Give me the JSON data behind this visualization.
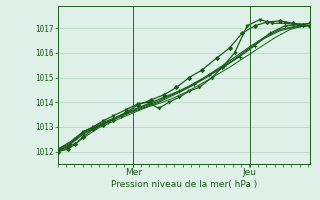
{
  "title": "",
  "xlabel": "Pression niveau de la mer( hPa )",
  "ylabel": "",
  "bg_color": "#dff0e8",
  "grid_color": "#b0d4bc",
  "line_color": "#1a5c1a",
  "tick_label_color": "#1a5c1a",
  "axis_label_color": "#1a5c1a",
  "ylim": [
    1011.5,
    1017.9
  ],
  "yticks": [
    1012,
    1013,
    1014,
    1015,
    1016,
    1017
  ],
  "day_labels": [
    "Mer",
    "Jeu"
  ],
  "day_positions": [
    0.3,
    0.76
  ],
  "lines": [
    {
      "x": [
        0.0,
        0.04,
        0.07,
        0.1,
        0.14,
        0.18,
        0.22,
        0.27,
        0.32,
        0.37,
        0.42,
        0.47,
        0.52,
        0.57,
        0.63,
        0.68,
        0.73,
        0.78,
        0.83,
        0.88,
        0.93,
        0.97,
        1.0
      ],
      "y": [
        1012.0,
        1012.1,
        1012.3,
        1012.6,
        1012.9,
        1013.1,
        1013.3,
        1013.6,
        1013.9,
        1014.1,
        1014.3,
        1014.6,
        1015.0,
        1015.3,
        1015.8,
        1016.2,
        1016.8,
        1017.1,
        1017.25,
        1017.3,
        1017.2,
        1017.15,
        1017.1
      ],
      "marker": "D",
      "ms": 2.0,
      "lw": 0.9
    },
    {
      "x": [
        0.0,
        0.04,
        0.07,
        0.1,
        0.14,
        0.18,
        0.22,
        0.27,
        0.32,
        0.36,
        0.4,
        0.44,
        0.48,
        0.52,
        0.56,
        0.61,
        0.65,
        0.7,
        0.75,
        0.8,
        0.85,
        0.9,
        0.95,
        1.0
      ],
      "y": [
        1012.05,
        1012.2,
        1012.5,
        1012.8,
        1013.0,
        1013.25,
        1013.45,
        1013.7,
        1013.95,
        1014.0,
        1013.75,
        1014.0,
        1014.2,
        1014.45,
        1014.6,
        1015.0,
        1015.4,
        1016.0,
        1017.1,
        1017.35,
        1017.2,
        1017.2,
        1017.15,
        1017.2
      ],
      "marker": "v",
      "ms": 2.0,
      "lw": 0.9
    },
    {
      "x": [
        0.0,
        0.05,
        0.1,
        0.15,
        0.2,
        0.25,
        0.3,
        0.36,
        0.42,
        0.48,
        0.54,
        0.6,
        0.66,
        0.72,
        0.78,
        0.84,
        0.9,
        0.96,
        1.0
      ],
      "y": [
        1012.05,
        1012.3,
        1012.7,
        1013.0,
        1013.2,
        1013.45,
        1013.7,
        1013.95,
        1014.2,
        1014.45,
        1014.75,
        1015.1,
        1015.45,
        1015.85,
        1016.3,
        1016.8,
        1017.1,
        1017.15,
        1017.1
      ],
      "marker": "+",
      "ms": 3.5,
      "lw": 0.9
    },
    {
      "x": [
        0.0,
        0.05,
        0.1,
        0.16,
        0.22,
        0.28,
        0.34,
        0.4,
        0.46,
        0.52,
        0.58,
        0.64,
        0.7,
        0.76,
        0.82,
        0.88,
        0.94,
        1.0
      ],
      "y": [
        1012.08,
        1012.35,
        1012.75,
        1013.05,
        1013.3,
        1013.55,
        1013.78,
        1014.0,
        1014.3,
        1014.6,
        1014.95,
        1015.35,
        1015.75,
        1016.2,
        1016.6,
        1016.9,
        1017.05,
        1017.1
      ],
      "marker": null,
      "ms": 0,
      "lw": 0.8
    },
    {
      "x": [
        0.0,
        0.05,
        0.1,
        0.16,
        0.22,
        0.28,
        0.34,
        0.4,
        0.46,
        0.52,
        0.58,
        0.64,
        0.7,
        0.76,
        0.82,
        0.88,
        0.94,
        1.0
      ],
      "y": [
        1012.1,
        1012.4,
        1012.8,
        1013.1,
        1013.35,
        1013.6,
        1013.82,
        1014.05,
        1014.35,
        1014.65,
        1015.0,
        1015.4,
        1015.82,
        1016.25,
        1016.65,
        1016.95,
        1017.08,
        1017.12
      ],
      "marker": null,
      "ms": 0,
      "lw": 0.8
    },
    {
      "x": [
        0.0,
        0.04,
        0.08,
        0.12,
        0.16,
        0.21,
        0.26,
        0.31,
        0.36,
        0.41,
        0.46,
        0.51,
        0.56,
        0.62,
        0.68,
        0.74,
        0.8,
        0.86,
        0.92,
        0.97,
        1.0
      ],
      "y": [
        1012.02,
        1012.15,
        1012.4,
        1012.68,
        1012.95,
        1013.18,
        1013.4,
        1013.62,
        1013.82,
        1013.98,
        1014.18,
        1014.42,
        1014.7,
        1015.05,
        1015.42,
        1015.82,
        1016.22,
        1016.62,
        1016.95,
        1017.08,
        1017.1
      ],
      "marker": null,
      "ms": 0,
      "lw": 0.7
    }
  ]
}
